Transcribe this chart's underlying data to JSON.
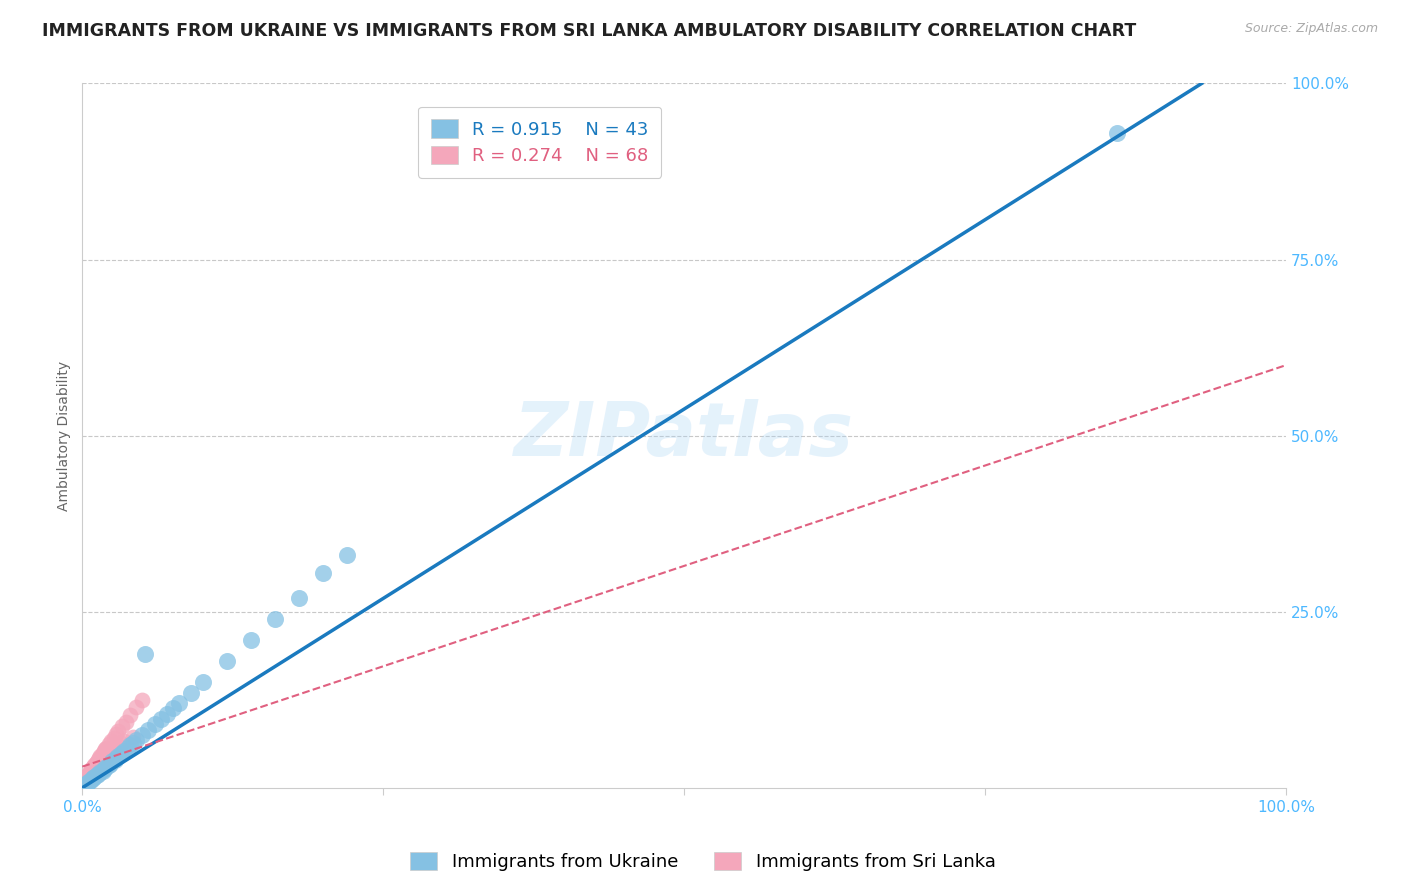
{
  "title": "IMMIGRANTS FROM UKRAINE VS IMMIGRANTS FROM SRI LANKA AMBULATORY DISABILITY CORRELATION CHART",
  "source": "Source: ZipAtlas.com",
  "xlabel_ukraine": "Immigrants from Ukraine",
  "xlabel_srilanka": "Immigrants from Sri Lanka",
  "ylabel": "Ambulatory Disability",
  "ukraine_R": 0.915,
  "ukraine_N": 43,
  "srilanka_R": 0.274,
  "srilanka_N": 68,
  "ukraine_color": "#85c1e3",
  "ukraine_line_color": "#1a7abf",
  "srilanka_color": "#f4a7bb",
  "srilanka_line_color": "#e06080",
  "watermark": "ZIPatlas",
  "ukraine_scatter_x": [
    0.3,
    0.5,
    0.8,
    1.0,
    1.2,
    1.5,
    1.8,
    2.0,
    2.2,
    2.5,
    2.8,
    3.0,
    3.2,
    3.5,
    3.8,
    4.0,
    4.2,
    4.5,
    5.0,
    5.5,
    6.0,
    6.5,
    7.0,
    7.5,
    8.0,
    9.0,
    10.0,
    12.0,
    14.0,
    16.0,
    18.0,
    20.0,
    22.0,
    5.2,
    0.4,
    0.6,
    0.9,
    1.3,
    1.7,
    2.3,
    2.7,
    3.3,
    86.0
  ],
  "ukraine_scatter_y": [
    0.5,
    0.8,
    1.2,
    1.5,
    1.8,
    2.2,
    2.6,
    3.0,
    3.3,
    3.8,
    4.2,
    4.5,
    4.8,
    5.2,
    5.6,
    6.0,
    6.4,
    6.8,
    7.5,
    8.2,
    9.0,
    9.8,
    10.5,
    11.3,
    12.0,
    13.5,
    15.0,
    18.0,
    21.0,
    24.0,
    27.0,
    30.5,
    33.0,
    19.0,
    0.6,
    1.0,
    1.4,
    1.9,
    2.4,
    3.4,
    4.0,
    4.9,
    93.0
  ],
  "srilanka_scatter_x": [
    0.05,
    0.1,
    0.15,
    0.2,
    0.25,
    0.3,
    0.35,
    0.4,
    0.45,
    0.5,
    0.55,
    0.6,
    0.65,
    0.7,
    0.75,
    0.8,
    0.85,
    0.9,
    0.95,
    1.0,
    1.1,
    1.2,
    1.3,
    1.4,
    1.5,
    1.6,
    1.7,
    1.8,
    1.9,
    2.0,
    2.2,
    2.4,
    2.6,
    2.8,
    3.0,
    3.3,
    3.6,
    4.0,
    4.5,
    5.0,
    0.08,
    0.18,
    0.28,
    0.38,
    0.48,
    0.58,
    0.68,
    0.78,
    0.88,
    0.98,
    1.08,
    1.18,
    1.28,
    1.38,
    1.48,
    1.58,
    1.68,
    1.78,
    1.88,
    1.98,
    2.1,
    2.3,
    2.5,
    2.7,
    2.9,
    3.2,
    3.5,
    4.2
  ],
  "srilanka_scatter_y": [
    0.3,
    0.5,
    0.7,
    0.9,
    1.1,
    1.3,
    1.4,
    1.6,
    1.7,
    1.9,
    2.0,
    2.2,
    2.3,
    2.4,
    2.6,
    2.7,
    2.8,
    3.0,
    3.1,
    3.2,
    3.5,
    3.7,
    4.0,
    4.2,
    4.5,
    4.7,
    5.0,
    5.2,
    5.5,
    5.7,
    6.2,
    6.7,
    7.1,
    7.6,
    8.0,
    8.7,
    9.4,
    10.3,
    11.4,
    12.5,
    0.4,
    0.6,
    0.8,
    1.0,
    1.2,
    1.5,
    1.7,
    1.9,
    2.1,
    2.3,
    2.5,
    2.7,
    2.9,
    3.2,
    3.4,
    3.6,
    3.8,
    4.0,
    4.3,
    4.5,
    4.8,
    5.1,
    5.4,
    5.7,
    6.0,
    6.3,
    6.7,
    7.2
  ],
  "ukraine_line_x0": 0,
  "ukraine_line_y0": 0,
  "ukraine_line_x1": 93,
  "ukraine_line_y1": 100,
  "srilanka_line_x0": 0,
  "srilanka_line_y0": 3,
  "srilanka_line_x1": 100,
  "srilanka_line_y1": 60,
  "xlim": [
    0,
    100
  ],
  "ylim": [
    0,
    100
  ],
  "grid_values": [
    25,
    50,
    75,
    100
  ],
  "title_fontsize": 12.5,
  "axis_label_fontsize": 10,
  "tick_fontsize": 11,
  "legend_fontsize": 13,
  "background_color": "#ffffff",
  "grid_color": "#c8c8c8",
  "title_color": "#222222",
  "axis_tick_color": "#4db8ff",
  "source_color": "#aaaaaa"
}
